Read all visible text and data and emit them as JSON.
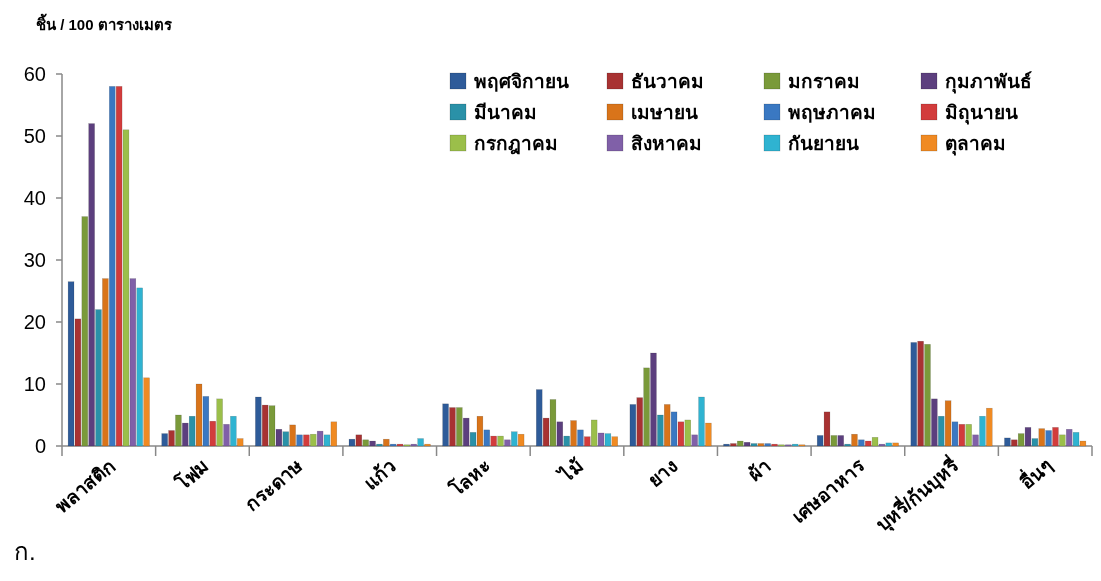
{
  "chart_data": {
    "type": "bar",
    "ylabel": "ชิ้น / 100 ตารางเมตร",
    "categories": [
      "พลาสติก",
      "โฟม",
      "กระดาษ",
      "แก้ว",
      "โลหะ",
      "ไม้",
      "ยาง",
      "ผ้า",
      "เศษอาหาร",
      "บุหรี่/ก้นบุหรี่",
      "อื่นๆ"
    ],
    "ylim": [
      0,
      60
    ],
    "yticks": [
      0,
      10,
      20,
      30,
      40,
      50,
      60
    ],
    "legend": "top right",
    "annotations": [
      "ก."
    ],
    "series": [
      {
        "name": "พฤศจิกายน",
        "color": "#2e5b99",
        "values": [
          26.5,
          2,
          7.9,
          1.1,
          6.8,
          9.1,
          6.7,
          0.3,
          1.7,
          16.7,
          1.3
        ]
      },
      {
        "name": "ธันวาคม",
        "color": "#a83232",
        "values": [
          20.5,
          2.5,
          6.6,
          1.8,
          6.2,
          4.5,
          7.8,
          0.4,
          5.5,
          16.9,
          1.0
        ]
      },
      {
        "name": "มกราคม",
        "color": "#7a9a3a",
        "values": [
          37,
          5,
          6.5,
          1.0,
          6.2,
          7.5,
          12.6,
          0.8,
          1.7,
          16.4,
          2.0
        ]
      },
      {
        "name": "กุมภาพันธ์",
        "color": "#5c3f7e",
        "values": [
          52,
          3.7,
          2.7,
          0.8,
          4.5,
          3.9,
          15.0,
          0.6,
          1.7,
          7.6,
          3.0
        ]
      },
      {
        "name": "มีนาคม",
        "color": "#2a91a8",
        "values": [
          22,
          4.8,
          2.3,
          0.3,
          2.2,
          1.6,
          5.0,
          0.4,
          0.3,
          4.8,
          1.2
        ]
      },
      {
        "name": "เมษายน",
        "color": "#d9741a",
        "values": [
          27,
          10,
          3.4,
          1.1,
          4.8,
          4.1,
          6.7,
          0.4,
          1.9,
          7.3,
          2.8
        ]
      },
      {
        "name": "พฤษภาคม",
        "color": "#3a78c2",
        "values": [
          58,
          8,
          1.8,
          0.3,
          2.6,
          2.6,
          5.5,
          0.4,
          1.0,
          3.9,
          2.5
        ]
      },
      {
        "name": "มิถุนายน",
        "color": "#d23c3c",
        "values": [
          58,
          4,
          1.8,
          0.3,
          1.6,
          1.5,
          3.9,
          0.3,
          0.8,
          3.5,
          3.0
        ]
      },
      {
        "name": "กรกฎาคม",
        "color": "#9bbf4a",
        "values": [
          51,
          7.6,
          1.9,
          0.2,
          1.6,
          4.2,
          4.2,
          0.2,
          1.4,
          3.5,
          1.8
        ]
      },
      {
        "name": "สิงหาคม",
        "color": "#8060a8",
        "values": [
          27,
          3.5,
          2.4,
          0.3,
          1.0,
          2.1,
          1.8,
          0.2,
          0.3,
          1.8,
          2.7
        ]
      },
      {
        "name": "กันยายน",
        "color": "#2fb3d1",
        "values": [
          25.5,
          4.8,
          1.8,
          1.2,
          2.3,
          2.0,
          7.9,
          0.3,
          0.5,
          4.8,
          2.2
        ]
      },
      {
        "name": "ตุลาคม",
        "color": "#f08a22",
        "values": [
          11,
          1.2,
          3.9,
          0.3,
          1.9,
          1.5,
          3.7,
          0.2,
          0.5,
          6.1,
          0.8
        ]
      }
    ]
  }
}
